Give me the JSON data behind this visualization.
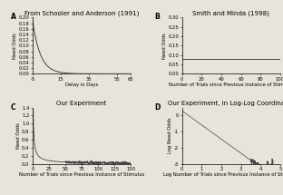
{
  "panel_A": {
    "title": "From Schooler and Anderson (1991)",
    "xlabel": "Delay in Days",
    "ylabel": "Need Odds",
    "xlim": [
      -5,
      65
    ],
    "ylim": [
      0,
      0.2
    ],
    "yticks": [
      0.0,
      0.02,
      0.04,
      0.06,
      0.08,
      0.1,
      0.12,
      0.14,
      0.16,
      0.18,
      0.2
    ],
    "ytick_labels": [
      "0.00",
      "0.02",
      "0.04",
      "0.06",
      "0.08",
      "0.10",
      "0.12",
      "0.14",
      "0.16",
      "0.18",
      "0.20"
    ],
    "xticks": [
      -5,
      15,
      35,
      55,
      65
    ],
    "xtick_labels": [
      "-5",
      "15",
      "35",
      "55",
      "65"
    ],
    "decay_amp": 0.19,
    "decay_rate": 0.18,
    "label": "A"
  },
  "panel_B": {
    "title": "Smith and Minda (1998)",
    "xlabel": "Number of Trials since Previous Instance of Stimulus",
    "ylabel": "Need Odds",
    "xlim": [
      0,
      100
    ],
    "ylim": [
      0,
      0.3
    ],
    "yticks": [
      0.0,
      0.05,
      0.1,
      0.15,
      0.2,
      0.25,
      0.3
    ],
    "ytick_labels": [
      "0.00",
      "0.05",
      "0.10",
      "0.15",
      "0.20",
      "0.25",
      "0.30"
    ],
    "xticks": [
      0,
      20,
      40,
      60,
      80,
      100
    ],
    "xtick_labels": [
      "0",
      "20",
      "40",
      "60",
      "80",
      "100"
    ],
    "flat_value": 0.08,
    "label": "B"
  },
  "panel_C": {
    "title": "Our Experiment",
    "xlabel": "Number of Trials since Previous Instance of Stimulus",
    "ylabel": "Need Odds",
    "xlim": [
      0,
      150
    ],
    "ylim": [
      0,
      1.4
    ],
    "yticks": [
      0.0,
      0.2,
      0.4,
      0.6,
      0.8,
      1.0,
      1.2,
      1.4
    ],
    "ytick_labels": [
      "0.0",
      "0.2",
      "0.4",
      "0.6",
      "0.8",
      "1.0",
      "1.2",
      "1.4"
    ],
    "xticks": [
      0,
      25,
      50,
      75,
      100,
      125,
      150
    ],
    "xtick_labels": [
      "0",
      "25",
      "50",
      "75",
      "100",
      "125",
      "150"
    ],
    "label": "C"
  },
  "panel_D": {
    "title": "Our Experiment, in Log-Log Coordinates",
    "xlabel": "Log Number of Trials since Previous Instance of Stimulus",
    "ylabel": "Log Need Odds",
    "xlim": [
      0,
      5
    ],
    "ylim": [
      -3,
      0.5
    ],
    "yticks": [
      -3,
      -2,
      -1,
      0
    ],
    "ytick_labels": [
      "-3",
      "-2",
      "-1",
      "0"
    ],
    "xticks": [
      0,
      1,
      2,
      3,
      4,
      5
    ],
    "xtick_labels": [
      "0",
      "1",
      "2",
      "3",
      "4",
      "5"
    ],
    "label": "D"
  },
  "line_color": "#444444",
  "bg_color": "#e8e4dc",
  "title_fontsize": 5.0,
  "label_fontsize": 5.5,
  "tick_fontsize": 3.8,
  "axis_label_fontsize": 3.8
}
